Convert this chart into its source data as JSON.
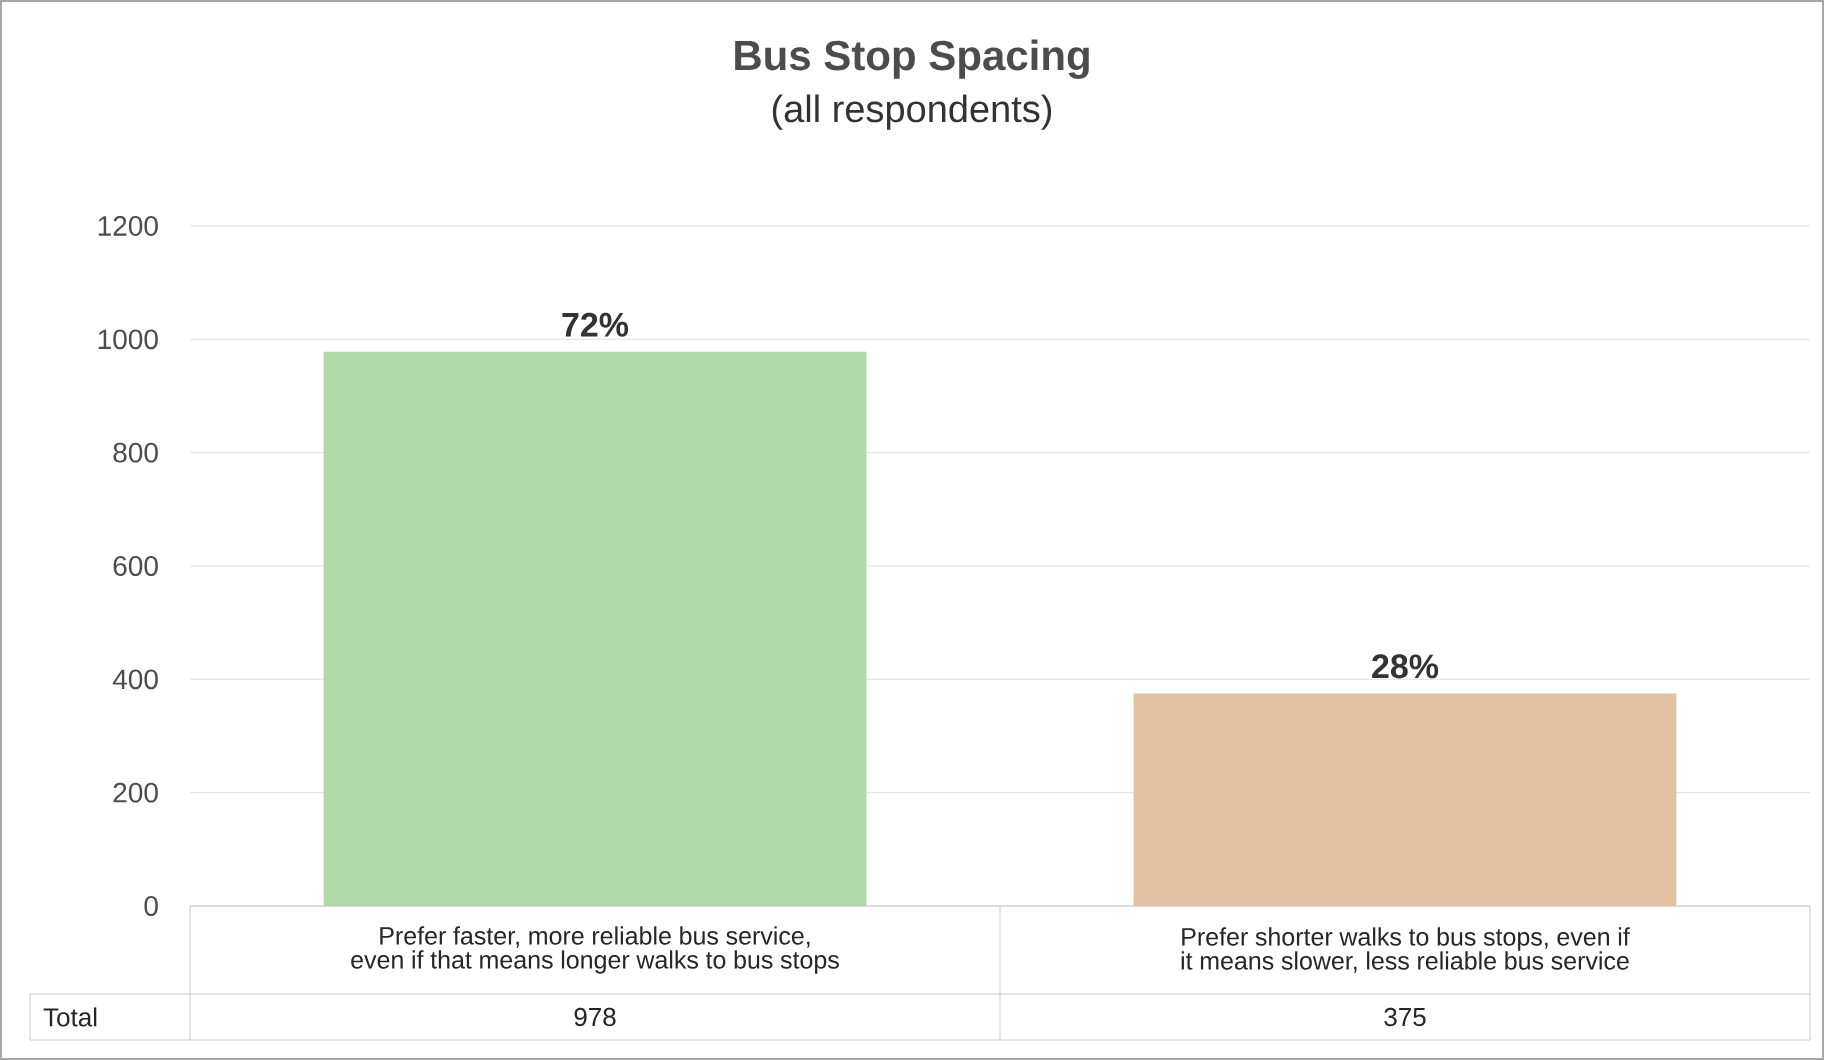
{
  "chart_data": {
    "type": "bar",
    "title": "Bus Stop Spacing",
    "subtitle": "(all respondents)",
    "categories": [
      "Prefer faster, more reliable bus service, even if that means longer walks to bus stops",
      "Prefer shorter walks to bus stops, even if it means slower, less reliable bus service"
    ],
    "series": [
      {
        "name": "Total",
        "colors": [
          "#b0d8a8",
          "#e2c2a3"
        ],
        "values": [
          978,
          375
        ],
        "value_labels": [
          "978",
          "375"
        ]
      }
    ],
    "annotations": [
      {
        "text": "72%",
        "x": "Prefer faster, more reliable bus service, even if that means longer walks to bus stops",
        "y": 978
      },
      {
        "text": "28%",
        "x": "Prefer shorter walks to bus stops, even if it means slower, less reliable bus service",
        "y": 375
      }
    ],
    "ylim": [
      0,
      1200
    ],
    "yticks": [
      0,
      200,
      400,
      600,
      800,
      1000,
      1200
    ],
    "grid": "y"
  }
}
